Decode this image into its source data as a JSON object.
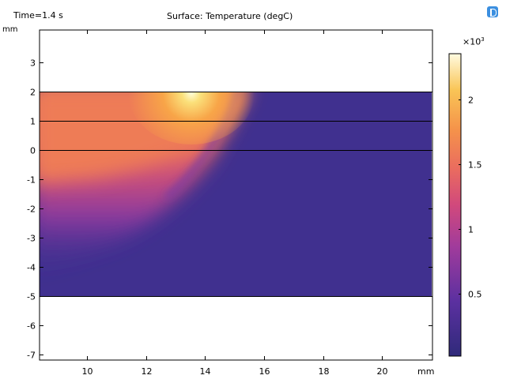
{
  "header": {
    "time_label": "Time=1.4 s",
    "title": "Surface: Temperature (degC)"
  },
  "logo": {
    "icon": "app-logo-icon"
  },
  "chart_data": {
    "type": "heatmap",
    "title": "Surface: Temperature (degC)",
    "time": "Time=1.4 s",
    "x_unit": "mm",
    "y_unit": "mm",
    "xlim": [
      8.4,
      21.7
    ],
    "ylim": [
      -7.2,
      4.1
    ],
    "x_ticks": [
      10,
      12,
      14,
      16,
      18,
      20
    ],
    "y_ticks": [
      3,
      2,
      1,
      0,
      -1,
      -2,
      -3,
      -4,
      -5,
      -6,
      -7
    ],
    "domain": {
      "x": [
        8.4,
        21.7
      ],
      "y": [
        -5,
        2
      ]
    },
    "layer_boundaries_y": [
      2,
      1,
      0,
      -5
    ],
    "hot_spot": {
      "x": 13.5,
      "y": 2.0,
      "value": 2330
    },
    "colorbar": {
      "multiplier": "×10",
      "exponent": "3",
      "range": [
        0.02,
        2.35
      ],
      "ticks": [
        {
          "value": 2,
          "label": "2"
        },
        {
          "value": 1.5,
          "label": "1.5"
        },
        {
          "value": 1,
          "label": "1"
        },
        {
          "value": 0.5,
          "label": "0.5"
        }
      ]
    },
    "grid": false
  }
}
